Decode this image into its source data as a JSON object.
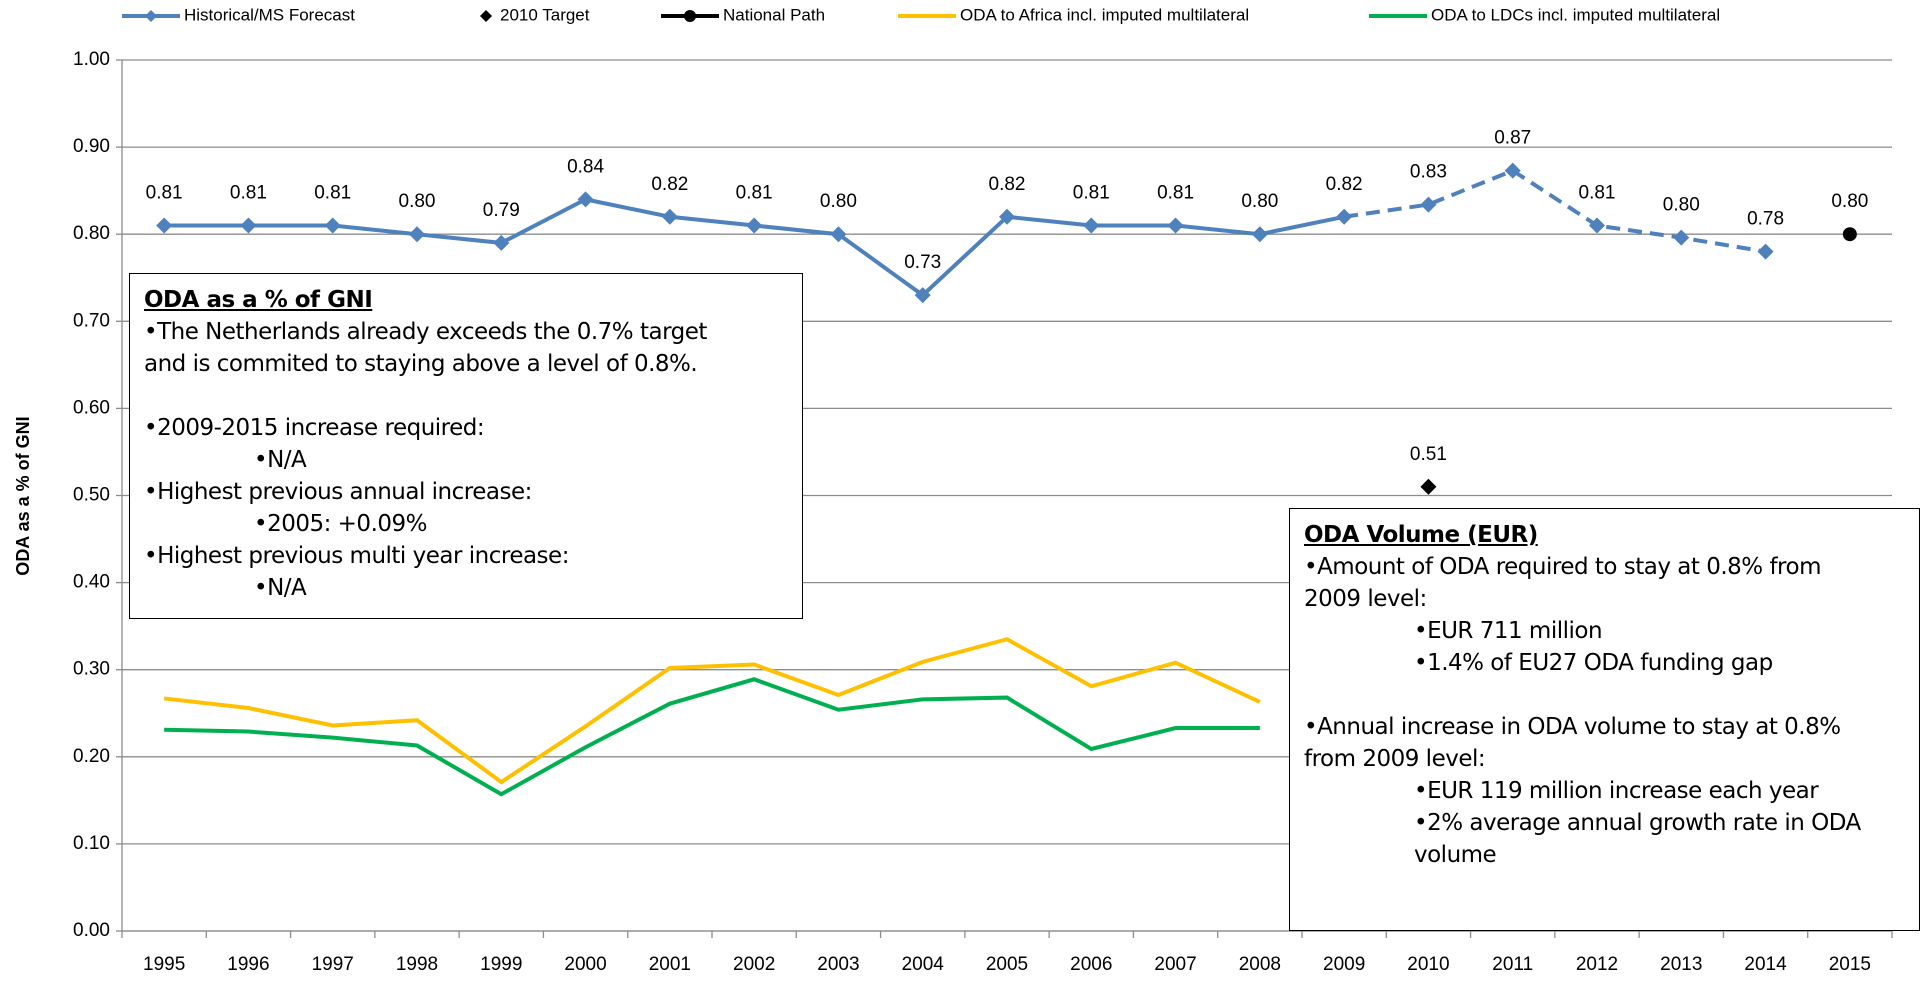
{
  "chart_data": {
    "type": "line",
    "y_label": "ODA as a % of GNI",
    "categories": [
      "1995",
      "1996",
      "1997",
      "1998",
      "1999",
      "2000",
      "2001",
      "2002",
      "2003",
      "2004",
      "2005",
      "2006",
      "2007",
      "2008",
      "2009",
      "2010",
      "2011",
      "2012",
      "2013",
      "2014",
      "2015"
    ],
    "ylim": [
      0,
      1
    ],
    "yticks": [
      {
        "value": 0,
        "label": "0.00"
      },
      {
        "value": 0.1,
        "label": "0.10"
      },
      {
        "value": 0.2,
        "label": "0.20"
      },
      {
        "value": 0.3,
        "label": "0.30"
      },
      {
        "value": 0.4,
        "label": "0.40"
      },
      {
        "value": 0.5,
        "label": "0.50"
      },
      {
        "value": 0.6,
        "label": "0.60"
      },
      {
        "value": 0.7,
        "label": "0.70"
      },
      {
        "value": 0.8,
        "label": "0.80"
      },
      {
        "value": 0.9,
        "label": "0.90"
      },
      {
        "value": 1,
        "label": "1.00"
      }
    ],
    "grid": true,
    "legend": "top",
    "series": [
      {
        "name": "Historical/MS Forecast",
        "color": "#4f81bd",
        "marker": "diamond",
        "line": true,
        "dashed_from": "2009",
        "values": [
          0.81,
          0.81,
          0.81,
          0.8,
          0.79,
          0.84,
          0.82,
          0.81,
          0.8,
          0.73,
          0.82,
          0.81,
          0.81,
          0.8,
          0.82,
          0.834,
          0.873,
          0.81,
          0.796,
          0.78,
          null
        ],
        "value_labels": [
          "0.81",
          "0.81",
          "0.81",
          "0.80",
          "0.79",
          "0.84",
          "0.82",
          "0.81",
          "0.80",
          "0.73",
          "0.82",
          "0.81",
          "0.81",
          "0.80",
          "0.82",
          "0.83",
          "0.87",
          "0.81",
          "0.80",
          "0.78",
          null
        ]
      },
      {
        "name": "2010 Target",
        "color": "#000000",
        "marker": "diamond",
        "line": false,
        "values": [
          null,
          null,
          null,
          null,
          null,
          null,
          null,
          null,
          null,
          null,
          null,
          null,
          null,
          null,
          null,
          0.51,
          null,
          null,
          null,
          null,
          null
        ],
        "value_labels": [
          null,
          null,
          null,
          null,
          null,
          null,
          null,
          null,
          null,
          null,
          null,
          null,
          null,
          null,
          null,
          "0.51",
          null,
          null,
          null,
          null,
          null
        ]
      },
      {
        "name": "National Path",
        "color": "#000000",
        "marker": "circle",
        "line": true,
        "values": [
          null,
          null,
          null,
          null,
          null,
          null,
          null,
          null,
          null,
          null,
          null,
          null,
          null,
          null,
          null,
          null,
          null,
          null,
          null,
          null,
          0.8
        ],
        "value_labels": [
          null,
          null,
          null,
          null,
          null,
          null,
          null,
          null,
          null,
          null,
          null,
          null,
          null,
          null,
          null,
          null,
          null,
          null,
          null,
          null,
          "0.80"
        ]
      },
      {
        "name": "ODA to Africa incl. imputed multilateral",
        "color": "#ffc000",
        "line": true,
        "values": [
          0.267,
          0.256,
          0.236,
          0.242,
          0.171,
          0.235,
          0.302,
          0.306,
          0.271,
          0.309,
          0.335,
          0.281,
          0.308,
          0.263,
          null,
          null,
          null,
          null,
          null,
          null,
          null
        ]
      },
      {
        "name": "ODA to LDCs incl. imputed multilateral",
        "color": "#00b050",
        "line": true,
        "values": [
          0.231,
          0.229,
          0.222,
          0.213,
          0.157,
          0.211,
          0.261,
          0.289,
          0.254,
          0.266,
          0.268,
          0.209,
          0.233,
          0.233,
          null,
          null,
          null,
          null,
          null,
          null,
          null
        ]
      }
    ],
    "annotations": [
      {
        "title": "ODA as a % of GNI",
        "lines": [
          {
            "text": "•The Netherlands already exceeds the 0.7% target",
            "level": 0
          },
          {
            "text": "and  is commited to staying above a level of 0.8%.",
            "level": 0,
            "gap_after": true
          },
          {
            "text": "•2009-2015 increase required:",
            "level": 0
          },
          {
            "text": "•N/A",
            "level": 1
          },
          {
            "text": "•Highest previous annual increase:",
            "level": 0
          },
          {
            "text": "•2005: +0.09%",
            "level": 1
          },
          {
            "text": "•Highest previous multi year increase:",
            "level": 0
          },
          {
            "text": "•N/A",
            "level": 1
          }
        ]
      },
      {
        "title": "ODA Volume (EUR)",
        "lines": [
          {
            "text": "•Amount of ODA required to stay at 0.8% from",
            "level": 0
          },
          {
            "text": "2009 level:",
            "level": 0
          },
          {
            "text": "•EUR 711  million",
            "level": 1
          },
          {
            "text": "•1.4% of EU27 ODA funding gap",
            "level": 1,
            "gap_after": true
          },
          {
            "text": "•Annual increase in ODA volume to stay at 0.8%",
            "level": 0
          },
          {
            "text": "from 2009 level:",
            "level": 0
          },
          {
            "text": "•EUR 119  million increase each year",
            "level": 1
          },
          {
            "text": "•2%  average annual growth rate in ODA",
            "level": 1
          },
          {
            "text": "volume",
            "level": 1
          }
        ]
      }
    ]
  }
}
